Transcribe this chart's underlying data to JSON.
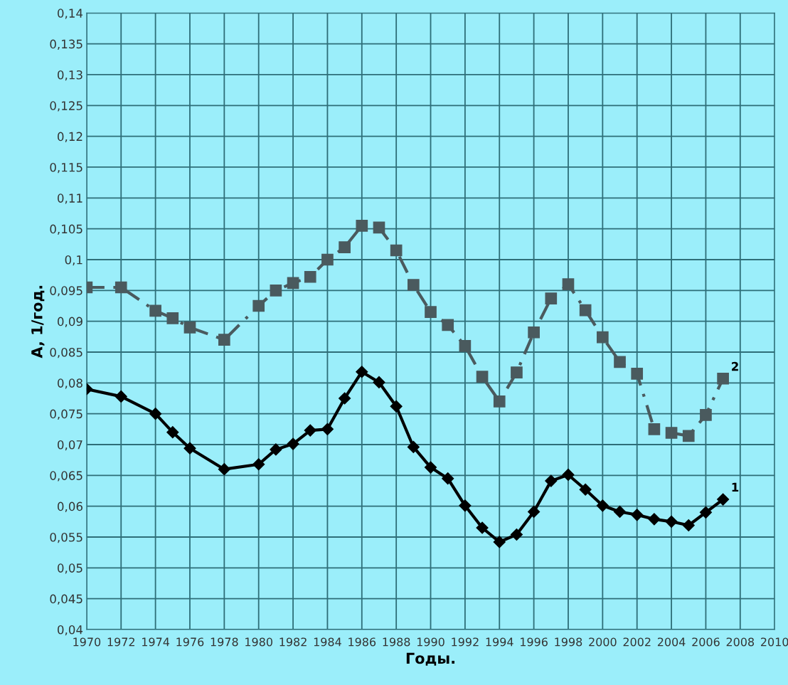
{
  "chart_data": {
    "type": "line",
    "xlabel": "Годы.",
    "ylabel": "A, 1/год.",
    "x": [
      1970,
      1972,
      1974,
      1975,
      1976,
      1978,
      1980,
      1981,
      1982,
      1983,
      1984,
      1985,
      1986,
      1987,
      1988,
      1989,
      1990,
      1991,
      1992,
      1993,
      1994,
      1995,
      1996,
      1997,
      1998,
      1999,
      2000,
      2001,
      2002,
      2003,
      2004,
      2005,
      2006,
      2007
    ],
    "series": [
      {
        "color": "#000000",
        "marker": "diamond",
        "line_style": "solid",
        "values": [
          0.079,
          0.0778,
          0.075,
          0.072,
          0.0694,
          0.066,
          0.0668,
          0.0692,
          0.0701,
          0.0723,
          0.0725,
          0.0775,
          0.0818,
          0.0801,
          0.0762,
          0.0696,
          0.0663,
          0.0645,
          0.0601,
          0.0565,
          0.0542,
          0.0554,
          0.0591,
          0.0641,
          0.0651,
          0.0627,
          0.0601,
          0.0591,
          0.0586,
          0.0579,
          0.0575,
          0.0569,
          0.059,
          0.0611
        ]
      },
      {
        "color": "#4a5a5e",
        "marker": "square",
        "line_style": "dashed",
        "values": [
          0.0955,
          0.0955,
          0.0917,
          0.0905,
          0.089,
          0.087,
          0.0925,
          0.095,
          0.0962,
          0.0972,
          0.1,
          0.102,
          0.1055,
          0.1052,
          0.1015,
          0.0959,
          0.0915,
          0.0894,
          0.086,
          0.081,
          0.077,
          0.0817,
          0.0882,
          0.0937,
          0.096,
          0.0918,
          0.0874,
          0.0834,
          0.0815,
          0.0725,
          0.0719,
          0.0714,
          0.0748,
          0.0807
        ]
      }
    ],
    "annotations": [
      {
        "text": "1",
        "x": 2007,
        "y": 0.0611
      },
      {
        "text": "2",
        "x": 2007,
        "y": 0.0807
      }
    ],
    "xlim": [
      1970,
      2010
    ],
    "xticks": [
      1970,
      1972,
      1974,
      1976,
      1978,
      1980,
      1982,
      1984,
      1986,
      1988,
      1990,
      1992,
      1994,
      1996,
      1998,
      2000,
      2002,
      2004,
      2006,
      2008,
      2010
    ],
    "ylim": [
      0.04,
      0.14
    ],
    "yticks": [
      {
        "value": 0.04,
        "label": "0,04"
      },
      {
        "value": 0.045,
        "label": "0,045"
      },
      {
        "value": 0.05,
        "label": "0,05"
      },
      {
        "value": 0.055,
        "label": "0,055"
      },
      {
        "value": 0.06,
        "label": "0,06"
      },
      {
        "value": 0.065,
        "label": "0,065"
      },
      {
        "value": 0.07,
        "label": "0,07"
      },
      {
        "value": 0.075,
        "label": "0,075"
      },
      {
        "value": 0.08,
        "label": "0,08"
      },
      {
        "value": 0.085,
        "label": "0,085"
      },
      {
        "value": 0.09,
        "label": "0,09"
      },
      {
        "value": 0.095,
        "label": "0,095"
      },
      {
        "value": 0.1,
        "label": "0,1"
      },
      {
        "value": 0.105,
        "label": "0,105"
      },
      {
        "value": 0.11,
        "label": "0,11"
      },
      {
        "value": 0.115,
        "label": "0,115"
      },
      {
        "value": 0.12,
        "label": "0,12"
      },
      {
        "value": 0.125,
        "label": "0,125"
      },
      {
        "value": 0.13,
        "label": "0,13"
      },
      {
        "value": 0.135,
        "label": "0,135"
      },
      {
        "value": 0.14,
        "label": "0,14"
      }
    ],
    "grid": true
  }
}
